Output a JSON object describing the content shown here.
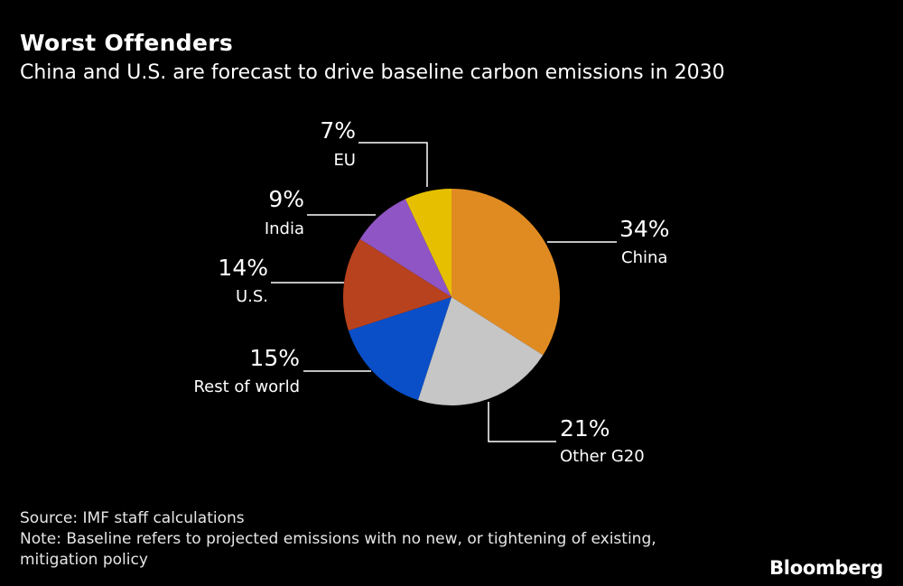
{
  "title": "Worst Offenders",
  "subtitle": "China and U.S. are forecast to drive baseline carbon emissions in 2030",
  "chart_data": {
    "type": "pie",
    "slices": [
      {
        "name": "China",
        "value": 34,
        "label": "34%",
        "color": "#E08B22"
      },
      {
        "name": "Other G20",
        "value": 21,
        "label": "21%",
        "color": "#C6C6C6"
      },
      {
        "name": "Rest of world",
        "value": 15,
        "label": "15%",
        "color": "#0A4FC8"
      },
      {
        "name": "U.S.",
        "value": 14,
        "label": "14%",
        "color": "#B8421E"
      },
      {
        "name": "India",
        "value": 9,
        "label": "9%",
        "color": "#8F55C4"
      },
      {
        "name": "EU",
        "value": 7,
        "label": "7%",
        "color": "#E6C000"
      }
    ]
  },
  "footer": {
    "source": "Source: IMF staff calculations",
    "note": "Note: Baseline refers to projected emissions with no new, or tightening of existing, mitigation policy"
  },
  "brand": "Bloomberg"
}
